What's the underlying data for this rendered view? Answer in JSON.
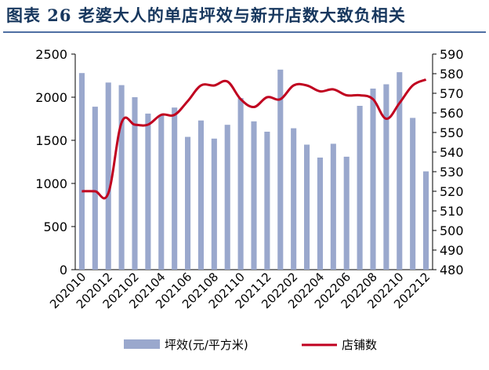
{
  "figure": {
    "title": "图表 26   老婆大人的单店坪效与新开店数大致负相关"
  },
  "colors": {
    "bar": "#9aa8cd",
    "line": "#c0001f",
    "title": "#17375e",
    "rule": "#4f6fa3"
  },
  "chart_data": {
    "type": "bar",
    "categories": [
      "202010",
      "202011",
      "202012",
      "202101",
      "202102",
      "202103",
      "202104",
      "202105",
      "202106",
      "202107",
      "202108",
      "202109",
      "202110",
      "202111",
      "202112",
      "202201",
      "202202",
      "202203",
      "202204",
      "202205",
      "202206",
      "202207",
      "202208",
      "202209",
      "202210",
      "202211",
      "202212"
    ],
    "x_tick_labels": [
      "202010",
      "202012",
      "202102",
      "202104",
      "202106",
      "202108",
      "202110",
      "202112",
      "202202",
      "202204",
      "202206",
      "202208",
      "202210",
      "202212"
    ],
    "series": [
      {
        "name": "坪效(元/平方米)",
        "type": "bar",
        "axis": "left",
        "values": [
          2280,
          1890,
          2170,
          2140,
          2000,
          1810,
          1790,
          1880,
          1540,
          1730,
          1520,
          1680,
          1990,
          1720,
          1600,
          2320,
          1640,
          1450,
          1300,
          1460,
          1310,
          1900,
          2100,
          2150,
          2290,
          1760,
          1140
        ]
      },
      {
        "name": "店铺数",
        "type": "line",
        "axis": "right",
        "values": [
          520,
          520,
          519,
          555,
          554,
          554,
          559,
          559,
          566,
          574,
          574,
          576,
          567,
          563,
          568,
          567,
          574,
          574,
          571,
          572,
          569,
          569,
          567,
          557,
          565,
          574,
          577
        ]
      }
    ],
    "y_left": {
      "min": 0,
      "max": 2500,
      "ticks": [
        0,
        500,
        1000,
        1500,
        2000,
        2500
      ]
    },
    "y_right": {
      "min": 480,
      "max": 590,
      "ticks": [
        480,
        490,
        500,
        510,
        520,
        530,
        540,
        550,
        560,
        570,
        580,
        590
      ]
    },
    "legend": "bottom"
  }
}
